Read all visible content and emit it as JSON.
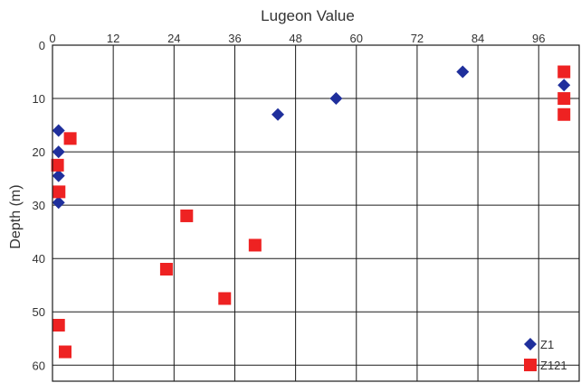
{
  "chart_data": {
    "type": "scatter",
    "title": "",
    "xlabel": "Lugeon Value",
    "ylabel": "Depth (m)",
    "x_axis_position": "top",
    "y_axis_inverted": true,
    "xlim": [
      0,
      104
    ],
    "ylim": [
      0,
      63
    ],
    "x_ticks": [
      0,
      12,
      24,
      36,
      48,
      60,
      72,
      84,
      96
    ],
    "y_ticks": [
      0,
      10,
      20,
      30,
      40,
      50,
      60
    ],
    "x_tick_labels": [
      "0",
      "12",
      "24",
      "36",
      "48",
      "60",
      "72",
      "84",
      "96"
    ],
    "y_tick_labels": [
      "0",
      "10",
      "20",
      "30",
      "40",
      "50",
      "60"
    ],
    "grid": true,
    "legend_position": "bottom-right",
    "series": [
      {
        "name": "Z1",
        "marker": "diamond",
        "color": "#1f2f9c",
        "points": [
          {
            "x": 81,
            "y": 5
          },
          {
            "x": 101,
            "y": 7.5
          },
          {
            "x": 56,
            "y": 10
          },
          {
            "x": 44.5,
            "y": 13
          },
          {
            "x": 1.2,
            "y": 16
          },
          {
            "x": 1.2,
            "y": 20
          },
          {
            "x": 1.2,
            "y": 24.5
          },
          {
            "x": 1.2,
            "y": 29.5
          }
        ]
      },
      {
        "name": "Z121",
        "marker": "square",
        "color": "#ee2222",
        "points": [
          {
            "x": 101,
            "y": 5
          },
          {
            "x": 101,
            "y": 10
          },
          {
            "x": 101,
            "y": 13
          },
          {
            "x": 3.5,
            "y": 17.5
          },
          {
            "x": 1,
            "y": 22.5
          },
          {
            "x": 1.3,
            "y": 27.5
          },
          {
            "x": 26.5,
            "y": 32
          },
          {
            "x": 40,
            "y": 37.5
          },
          {
            "x": 22.5,
            "y": 42
          },
          {
            "x": 34,
            "y": 47.5
          },
          {
            "x": 1.2,
            "y": 52.5
          },
          {
            "x": 2.5,
            "y": 57.5
          }
        ]
      }
    ]
  }
}
